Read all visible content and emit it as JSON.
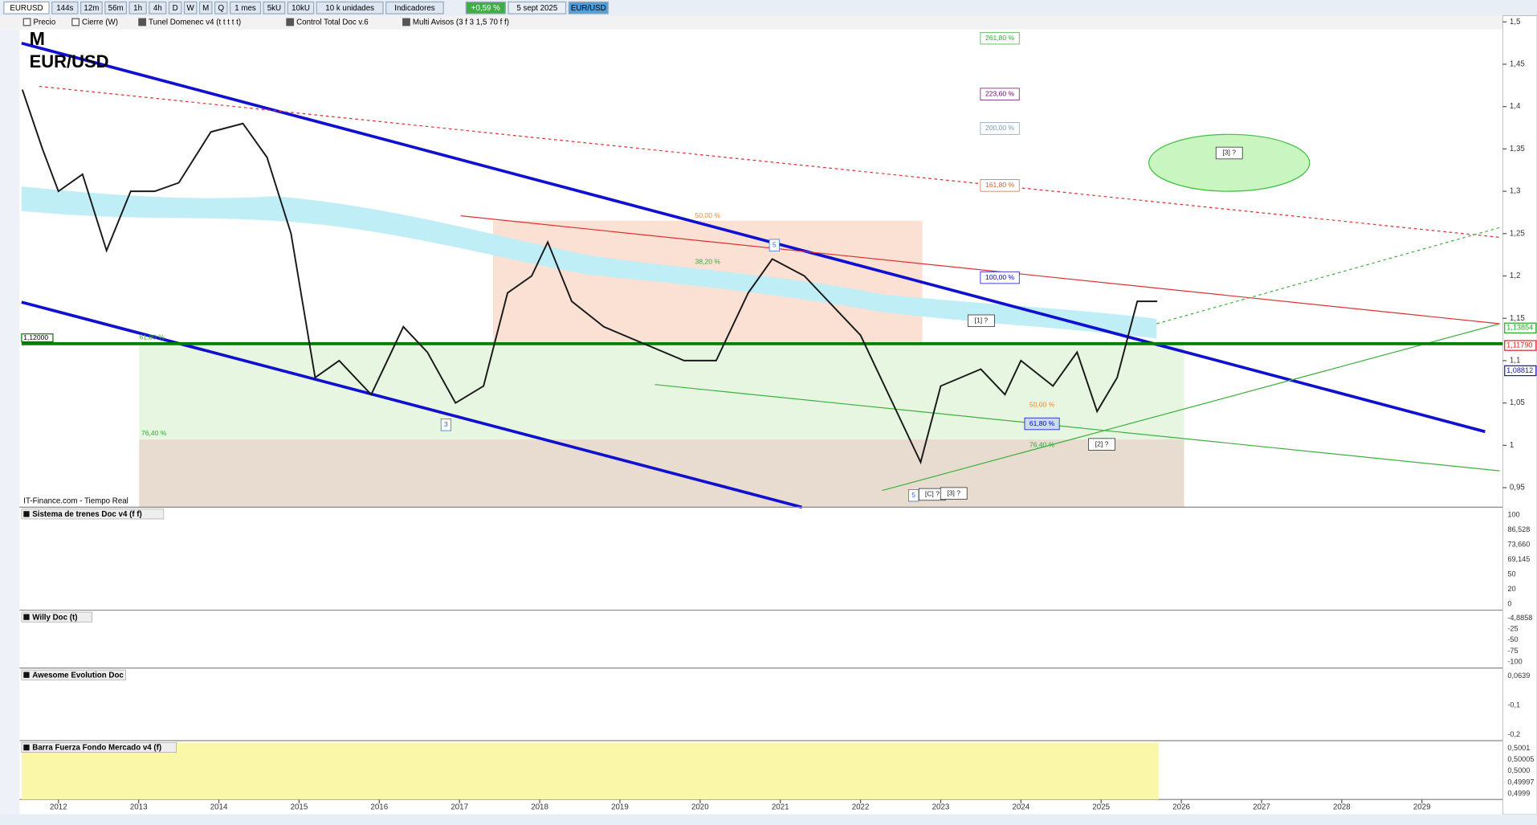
{
  "toolbar": {
    "symbol": "EURUSD",
    "buttons": [
      "144s",
      "12m",
      "56m",
      "1h",
      "4h",
      "D",
      "W",
      "M",
      "Q",
      "1 mes",
      "5kU",
      "10kU",
      "10 k unidades",
      "Indicadores"
    ],
    "change": "+0,59 %",
    "date": "5 sept 2025",
    "pair": "EUR/USD"
  },
  "legend_bar": [
    "Precio",
    "Cierre (W)",
    "Tunel Domenec v4 (t t t t t)",
    "Control Total Doc v.6",
    "Multi Avisos (3 f 3 1,5 70 f f)"
  ],
  "chart_data": {
    "type": "line",
    "title": "M",
    "source": "IT-Finance.com - Tiempo Real",
    "x": [
      2011.55,
      2011.8,
      2012.0,
      2012.3,
      2012.6,
      2012.9,
      2013.2,
      2013.5,
      2013.9,
      2014.3,
      2014.6,
      2014.9,
      2015.2,
      2015.5,
      2015.9,
      2016.3,
      2016.6,
      2016.95,
      2017.3,
      2017.6,
      2017.9,
      2018.1,
      2018.4,
      2018.8,
      2019.3,
      2019.8,
      2020.2,
      2020.6,
      2020.9,
      2021.3,
      2021.7,
      2022.0,
      2022.4,
      2022.75,
      2023.0,
      2023.5,
      2023.8,
      2024.0,
      2024.4,
      2024.7,
      2024.95,
      2025.2,
      2025.45,
      2025.6,
      2025.7
    ],
    "series": [
      {
        "name": "EUR/USD",
        "color": "#1a1a1a",
        "values": [
          1.42,
          1.35,
          1.3,
          1.32,
          1.23,
          1.3,
          1.3,
          1.31,
          1.37,
          1.38,
          1.34,
          1.25,
          1.08,
          1.1,
          1.06,
          1.14,
          1.11,
          1.05,
          1.07,
          1.18,
          1.2,
          1.24,
          1.17,
          1.14,
          1.12,
          1.1,
          1.1,
          1.18,
          1.22,
          1.2,
          1.16,
          1.13,
          1.05,
          0.98,
          1.07,
          1.09,
          1.06,
          1.1,
          1.07,
          1.11,
          1.04,
          1.08,
          1.17,
          1.17,
          1.17
        ]
      }
    ],
    "xlim": [
      2011.54,
      2029.97
    ],
    "xticks": [
      2012,
      2013,
      2014,
      2015,
      2016,
      2017,
      2018,
      2019,
      2020,
      2021,
      2022,
      2023,
      2024,
      2025,
      2026,
      2027,
      2028,
      2029
    ],
    "ylim": [
      0.927,
      1.505
    ],
    "yticks": [
      {
        "value": 0.95,
        "label": "0,95"
      },
      1,
      {
        "value": 1.05,
        "label": "1,05"
      },
      {
        "value": 1.1,
        "label": "1,1"
      },
      {
        "value": 1.15,
        "label": "1,15"
      },
      {
        "value": 1.2,
        "label": "1,2"
      },
      {
        "value": 1.25,
        "label": "1,25"
      },
      {
        "value": 1.3,
        "label": "1,3"
      },
      {
        "value": 1.35,
        "label": "1,35"
      },
      {
        "value": 1.4,
        "label": "1,4"
      },
      {
        "value": 1.45,
        "label": "1,45"
      },
      {
        "value": 1.5,
        "label": "1,5"
      }
    ],
    "levels": [
      {
        "value": 1.12,
        "label": "1,12000",
        "color": "#008000"
      }
    ],
    "price_labels": [
      {
        "value": 1.13854,
        "label": "1,13854",
        "color": "#22aa22"
      },
      {
        "value": 1.1179,
        "label": "1,11790",
        "color": "#dd2222"
      },
      {
        "value": 1.08812,
        "label": "1,08812",
        "color": "#1a1aaa"
      }
    ],
    "annotations": [
      "261,80 %",
      "223,60 %",
      "200,00 %",
      "161,80 %",
      "100,00 %",
      "50,00 %",
      "38,20 %",
      "61,80 %",
      "76,40 %",
      "50,00 %",
      "61,80 %",
      "76,40 %",
      "[3] ?",
      "[1] ?",
      "[2] ?",
      "3",
      "5",
      "[C] ?",
      "[3] ?",
      "5"
    ]
  },
  "panels": [
    {
      "title": "Sistema de trenes Doc v4 (f f)",
      "scale": [
        "100",
        "86,528",
        "73,660",
        "69,145",
        "50",
        "20",
        "0"
      ]
    },
    {
      "title": "Willy Doc (t)",
      "scale": [
        "-4,8858",
        "-25",
        "-50",
        "-75",
        "-100"
      ]
    },
    {
      "title": "Awesome Evolution Doc",
      "scale": [
        "0,0639",
        "-0,1",
        "-0,2"
      ]
    },
    {
      "title": "Barra Fuerza Fondo Mercado v4 (f)",
      "scale": [
        "0,5001",
        "0,50005",
        "0,5000",
        "0,49997",
        "0,4999"
      ]
    }
  ]
}
